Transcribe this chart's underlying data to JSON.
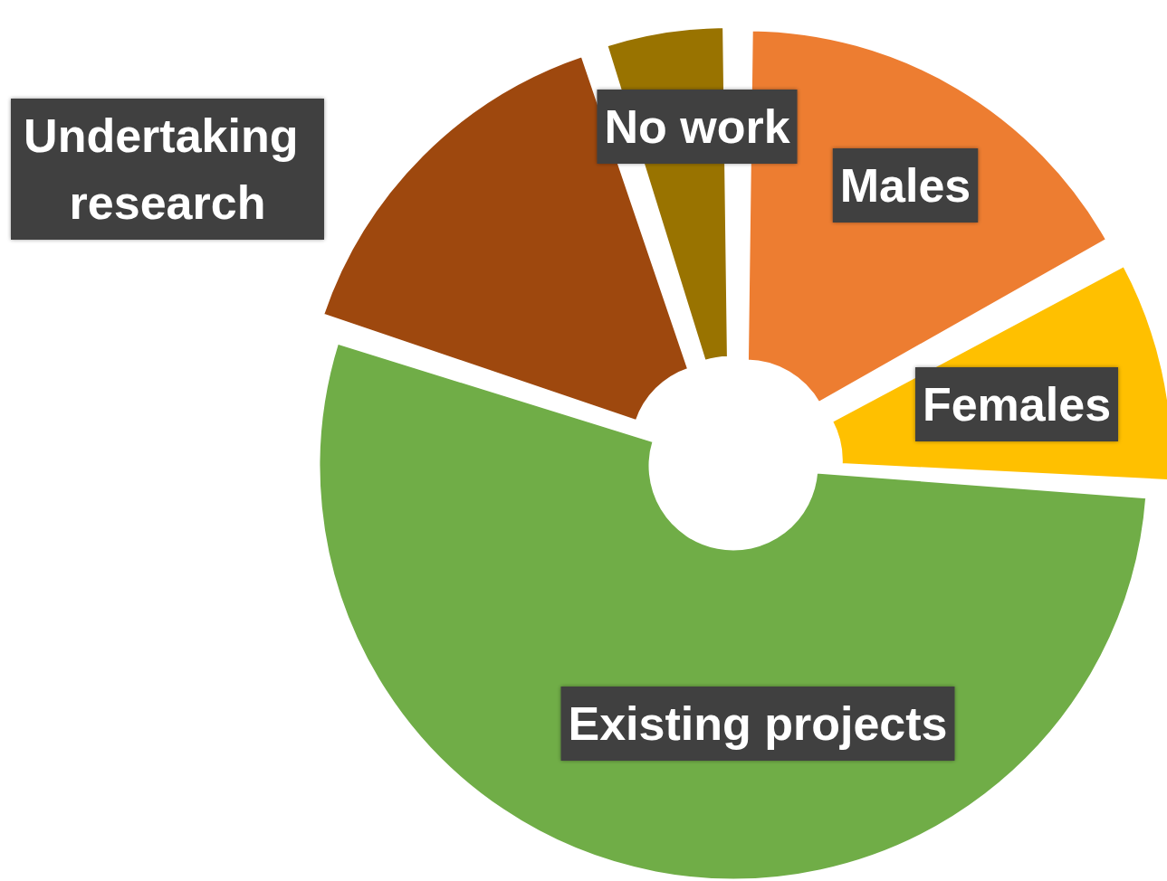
{
  "chart_data": {
    "type": "donut",
    "categories": [
      "Males",
      "Females",
      "Existing projects",
      "Undertaking research",
      "No work"
    ],
    "values": [
      17,
      9,
      54,
      15,
      5
    ],
    "colors": [
      "#ed7d31",
      "#ffc000",
      "#70ad47",
      "#9e480e",
      "#997300"
    ],
    "legend": false
  }
}
